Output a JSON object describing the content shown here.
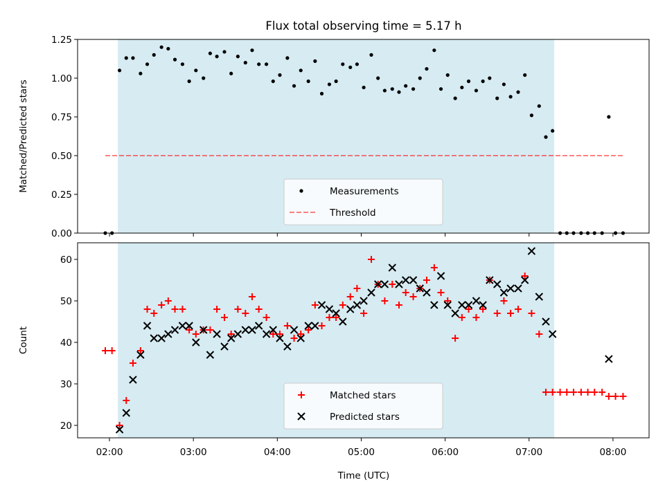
{
  "title": "Flux total observing time = 5.17 h",
  "xlabel": "Time (UTC)",
  "chart_data": [
    {
      "type": "scatter",
      "ylabel": "Matched/Predicted stars",
      "xlim": [
        1.62,
        8.43
      ],
      "ylim": [
        0,
        1.25
      ],
      "yticks": [
        0.0,
        0.25,
        0.5,
        0.75,
        1.0,
        1.25
      ],
      "ytick_labels": [
        "0.00",
        "0.25",
        "0.50",
        "0.75",
        "1.00",
        "1.25"
      ],
      "shaded_interval": [
        2.1,
        7.3
      ],
      "threshold": {
        "value": 0.5,
        "x_range": [
          1.95,
          8.13
        ]
      },
      "legend": {
        "location": "lower center",
        "entries": [
          "Measurements",
          "Threshold"
        ]
      },
      "series": [
        {
          "name": "Measurements",
          "x": [
            1.95,
            2.03,
            2.12,
            2.2,
            2.28,
            2.37,
            2.45,
            2.53,
            2.62,
            2.7,
            2.78,
            2.87,
            2.95,
            3.03,
            3.12,
            3.2,
            3.28,
            3.37,
            3.45,
            3.53,
            3.62,
            3.7,
            3.78,
            3.87,
            3.95,
            4.03,
            4.12,
            4.2,
            4.28,
            4.37,
            4.45,
            4.53,
            4.62,
            4.7,
            4.78,
            4.87,
            4.95,
            5.03,
            5.12,
            5.2,
            5.28,
            5.37,
            5.45,
            5.53,
            5.62,
            5.7,
            5.78,
            5.87,
            5.95,
            6.03,
            6.12,
            6.2,
            6.28,
            6.37,
            6.45,
            6.53,
            6.62,
            6.7,
            6.78,
            6.87,
            6.95,
            7.03,
            7.12,
            7.2,
            7.28,
            7.37,
            7.45,
            7.53,
            7.62,
            7.7,
            7.78,
            7.87,
            7.95,
            8.03,
            8.12
          ],
          "y": [
            0.0,
            0.0,
            1.05,
            1.13,
            1.13,
            1.03,
            1.09,
            1.15,
            1.2,
            1.19,
            1.12,
            1.09,
            0.98,
            1.05,
            1.0,
            1.16,
            1.14,
            1.17,
            1.03,
            1.14,
            1.1,
            1.18,
            1.09,
            1.09,
            0.98,
            1.02,
            1.13,
            0.95,
            1.05,
            0.98,
            1.11,
            0.9,
            0.96,
            0.98,
            1.09,
            1.07,
            1.09,
            0.94,
            1.15,
            1.0,
            0.92,
            0.93,
            0.91,
            0.95,
            0.93,
            1.0,
            1.06,
            1.18,
            0.93,
            1.02,
            0.87,
            0.94,
            0.98,
            0.92,
            0.98,
            1.0,
            0.87,
            0.96,
            0.88,
            0.91,
            1.02,
            0.76,
            0.82,
            0.62,
            0.66,
            0.0,
            0.0,
            0.0,
            0.0,
            0.0,
            0.0,
            0.0,
            0.75,
            0.0,
            0.0
          ]
        }
      ]
    },
    {
      "type": "scatter",
      "ylabel": "Count",
      "xlim": [
        1.62,
        8.43
      ],
      "ylim": [
        17,
        64
      ],
      "yticks": [
        20,
        30,
        40,
        50,
        60
      ],
      "ytick_labels": [
        "20",
        "30",
        "40",
        "50",
        "60"
      ],
      "xticks": [
        2,
        3,
        4,
        5,
        6,
        7,
        8
      ],
      "xtick_labels": [
        "02:00",
        "03:00",
        "04:00",
        "05:00",
        "06:00",
        "07:00",
        "08:00"
      ],
      "shaded_interval": [
        2.1,
        7.3
      ],
      "legend": {
        "location": "lower center",
        "entries": [
          "Matched stars",
          "Predicted stars"
        ]
      },
      "series": [
        {
          "name": "Matched stars",
          "x": [
            1.95,
            2.03,
            2.12,
            2.2,
            2.28,
            2.37,
            2.45,
            2.53,
            2.62,
            2.7,
            2.78,
            2.87,
            2.95,
            3.03,
            3.12,
            3.2,
            3.28,
            3.37,
            3.45,
            3.53,
            3.62,
            3.7,
            3.78,
            3.87,
            3.95,
            4.03,
            4.12,
            4.2,
            4.28,
            4.37,
            4.45,
            4.53,
            4.62,
            4.7,
            4.78,
            4.87,
            4.95,
            5.03,
            5.12,
            5.2,
            5.28,
            5.37,
            5.45,
            5.53,
            5.62,
            5.7,
            5.78,
            5.87,
            5.95,
            6.03,
            6.12,
            6.2,
            6.28,
            6.37,
            6.45,
            6.53,
            6.62,
            6.7,
            6.78,
            6.87,
            6.95,
            7.03,
            7.12,
            7.2,
            7.28,
            7.37,
            7.45,
            7.53,
            7.62,
            7.7,
            7.78,
            7.87,
            7.95,
            8.03,
            8.12
          ],
          "y": [
            38,
            38,
            20,
            26,
            35,
            38,
            48,
            47,
            49,
            50,
            48,
            48,
            43,
            42,
            43,
            43,
            48,
            46,
            42,
            48,
            47,
            51,
            48,
            46,
            42,
            42,
            44,
            41,
            42,
            43,
            49,
            44,
            46,
            46,
            49,
            51,
            53,
            47,
            60,
            54,
            50,
            54,
            49,
            52,
            51,
            53,
            55,
            58,
            52,
            50,
            41,
            46,
            48,
            46,
            48,
            55,
            47,
            50,
            47,
            48,
            56,
            47,
            42,
            28,
            28,
            28,
            28,
            28,
            28,
            28,
            28,
            28,
            27,
            27,
            27
          ]
        },
        {
          "name": "Predicted stars",
          "x": [
            2.12,
            2.2,
            2.28,
            2.37,
            2.45,
            2.53,
            2.62,
            2.7,
            2.78,
            2.87,
            2.95,
            3.03,
            3.12,
            3.2,
            3.28,
            3.37,
            3.45,
            3.53,
            3.62,
            3.7,
            3.78,
            3.87,
            3.95,
            4.03,
            4.12,
            4.2,
            4.28,
            4.37,
            4.45,
            4.53,
            4.62,
            4.7,
            4.78,
            4.87,
            4.95,
            5.03,
            5.12,
            5.2,
            5.28,
            5.37,
            5.45,
            5.53,
            5.62,
            5.7,
            5.78,
            5.87,
            5.95,
            6.03,
            6.12,
            6.2,
            6.28,
            6.37,
            6.45,
            6.53,
            6.62,
            6.7,
            6.78,
            6.87,
            6.95,
            7.03,
            7.12,
            7.2,
            7.28,
            7.95
          ],
          "y": [
            19,
            23,
            31,
            37,
            44,
            41,
            41,
            42,
            43,
            44,
            44,
            40,
            43,
            37,
            42,
            39,
            41,
            42,
            43,
            43,
            44,
            42,
            43,
            41,
            39,
            43,
            41,
            44,
            44,
            49,
            48,
            47,
            45,
            48,
            49,
            50,
            52,
            54,
            54,
            58,
            54,
            55,
            55,
            53,
            52,
            49,
            56,
            49,
            47,
            49,
            49,
            50,
            49,
            55,
            54,
            52,
            53,
            53,
            55,
            62,
            51,
            45,
            42,
            36
          ]
        }
      ]
    }
  ]
}
